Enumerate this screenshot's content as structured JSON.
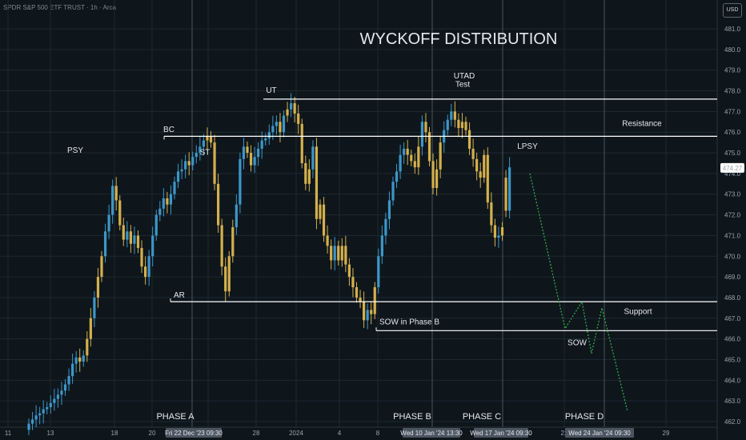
{
  "header": {
    "symbol_text": "SPDR S&P 500 ETF TRUST · 1h · Arca",
    "currency_button": "USD"
  },
  "chart_data": {
    "type": "candlestick",
    "title": "WYCKOFF DISTRIBUTION",
    "y_axis": {
      "ticks": [
        481.0,
        480.0,
        479.0,
        478.0,
        477.0,
        476.0,
        475.0,
        474.0,
        473.0,
        472.0,
        471.0,
        470.0,
        469.0,
        468.0,
        467.0,
        466.0,
        465.0,
        464.0,
        463.0,
        462.0
      ],
      "range": [
        462.0,
        481.6
      ],
      "last_price": "474.27"
    },
    "x_axis": {
      "ticks": [
        "11",
        "13",
        "18",
        "20",
        "28",
        "2024",
        "4",
        "8",
        "22",
        "29"
      ],
      "highlight_labels": [
        "Fri 22 Dec '23  09:30",
        "Wed 10 Jan '24  13:30",
        "Wed 17 Jan '24  09:30",
        "Wed 24 Jan '24  09:30"
      ]
    },
    "levels": [
      {
        "name": "Resistance",
        "price": 475.8
      },
      {
        "name": "UT level",
        "price": 477.6
      },
      {
        "name": "Support",
        "price": 467.8
      },
      {
        "name": "SOW level",
        "price": 466.4
      }
    ],
    "annotations": [
      {
        "text": "PSY",
        "price": 475.0
      },
      {
        "text": "BC",
        "price": 476.0
      },
      {
        "text": "ST",
        "price": 474.9
      },
      {
        "text": "UT",
        "price": 477.9
      },
      {
        "text": "AR",
        "price": 468.0
      },
      {
        "text": "SOW in Phase B",
        "price": 466.7
      },
      {
        "text": "UTAD",
        "price": 478.6
      },
      {
        "text": "Test",
        "price": 478.2
      },
      {
        "text": "LPSY",
        "price": 475.2
      },
      {
        "text": "Resistance",
        "price": 476.3
      },
      {
        "text": "Support",
        "price": 467.2
      },
      {
        "text": "SOW",
        "price": 465.7
      }
    ],
    "phases": [
      "PHASE A",
      "PHASE B",
      "PHASE C",
      "PHASE D"
    ],
    "projection": [
      474.0,
      466.5,
      467.8,
      465.3,
      467.5,
      462.5
    ],
    "candles_close": [
      461.9,
      462.1,
      462.3,
      462.4,
      462.6,
      462.7,
      462.9,
      463.1,
      463.3,
      463.5,
      463.8,
      464.2,
      464.8,
      465.1,
      464.9,
      465.2,
      466.0,
      467.0,
      468.0,
      469.0,
      470.0,
      471.2,
      472.0,
      473.4,
      472.7,
      471.5,
      470.8,
      471.2,
      470.6,
      471.0,
      470.4,
      469.5,
      469.0,
      470.0,
      471.0,
      472.0,
      472.3,
      472.8,
      472.5,
      473.0,
      473.6,
      474.1,
      474.2,
      474.6,
      474.4,
      474.8,
      475.0,
      475.3,
      475.6,
      475.8,
      475.5,
      473.5,
      471.5,
      469.5,
      468.3,
      470.0,
      471.4,
      472.5,
      474.7,
      475.3,
      475.0,
      474.4,
      474.8,
      475.2,
      475.6,
      475.7,
      476.0,
      476.3,
      476.5,
      476.0,
      476.8,
      477.1,
      477.4,
      476.9,
      476.4,
      474.5,
      473.5,
      474.2,
      475.3,
      471.8,
      472.5,
      471.0,
      470.5,
      469.8,
      470.5,
      469.8,
      470.5,
      469.6,
      469.0,
      468.5,
      468.0,
      467.8,
      466.9,
      467.4,
      467.2,
      468.5,
      470.0,
      471.0,
      471.8,
      472.7,
      473.6,
      474.1,
      474.9,
      475.2,
      474.9,
      474.6,
      474.3,
      475.3,
      476.5,
      476.0,
      474.6,
      473.3,
      474.2,
      475.5,
      476.1,
      476.6,
      477.0,
      476.6,
      476.2,
      476.5,
      476.1,
      475.2,
      474.7,
      474.1,
      473.8,
      474.9,
      472.6,
      471.5,
      470.9,
      471.0,
      471.4,
      472.2,
      474.3
    ]
  }
}
